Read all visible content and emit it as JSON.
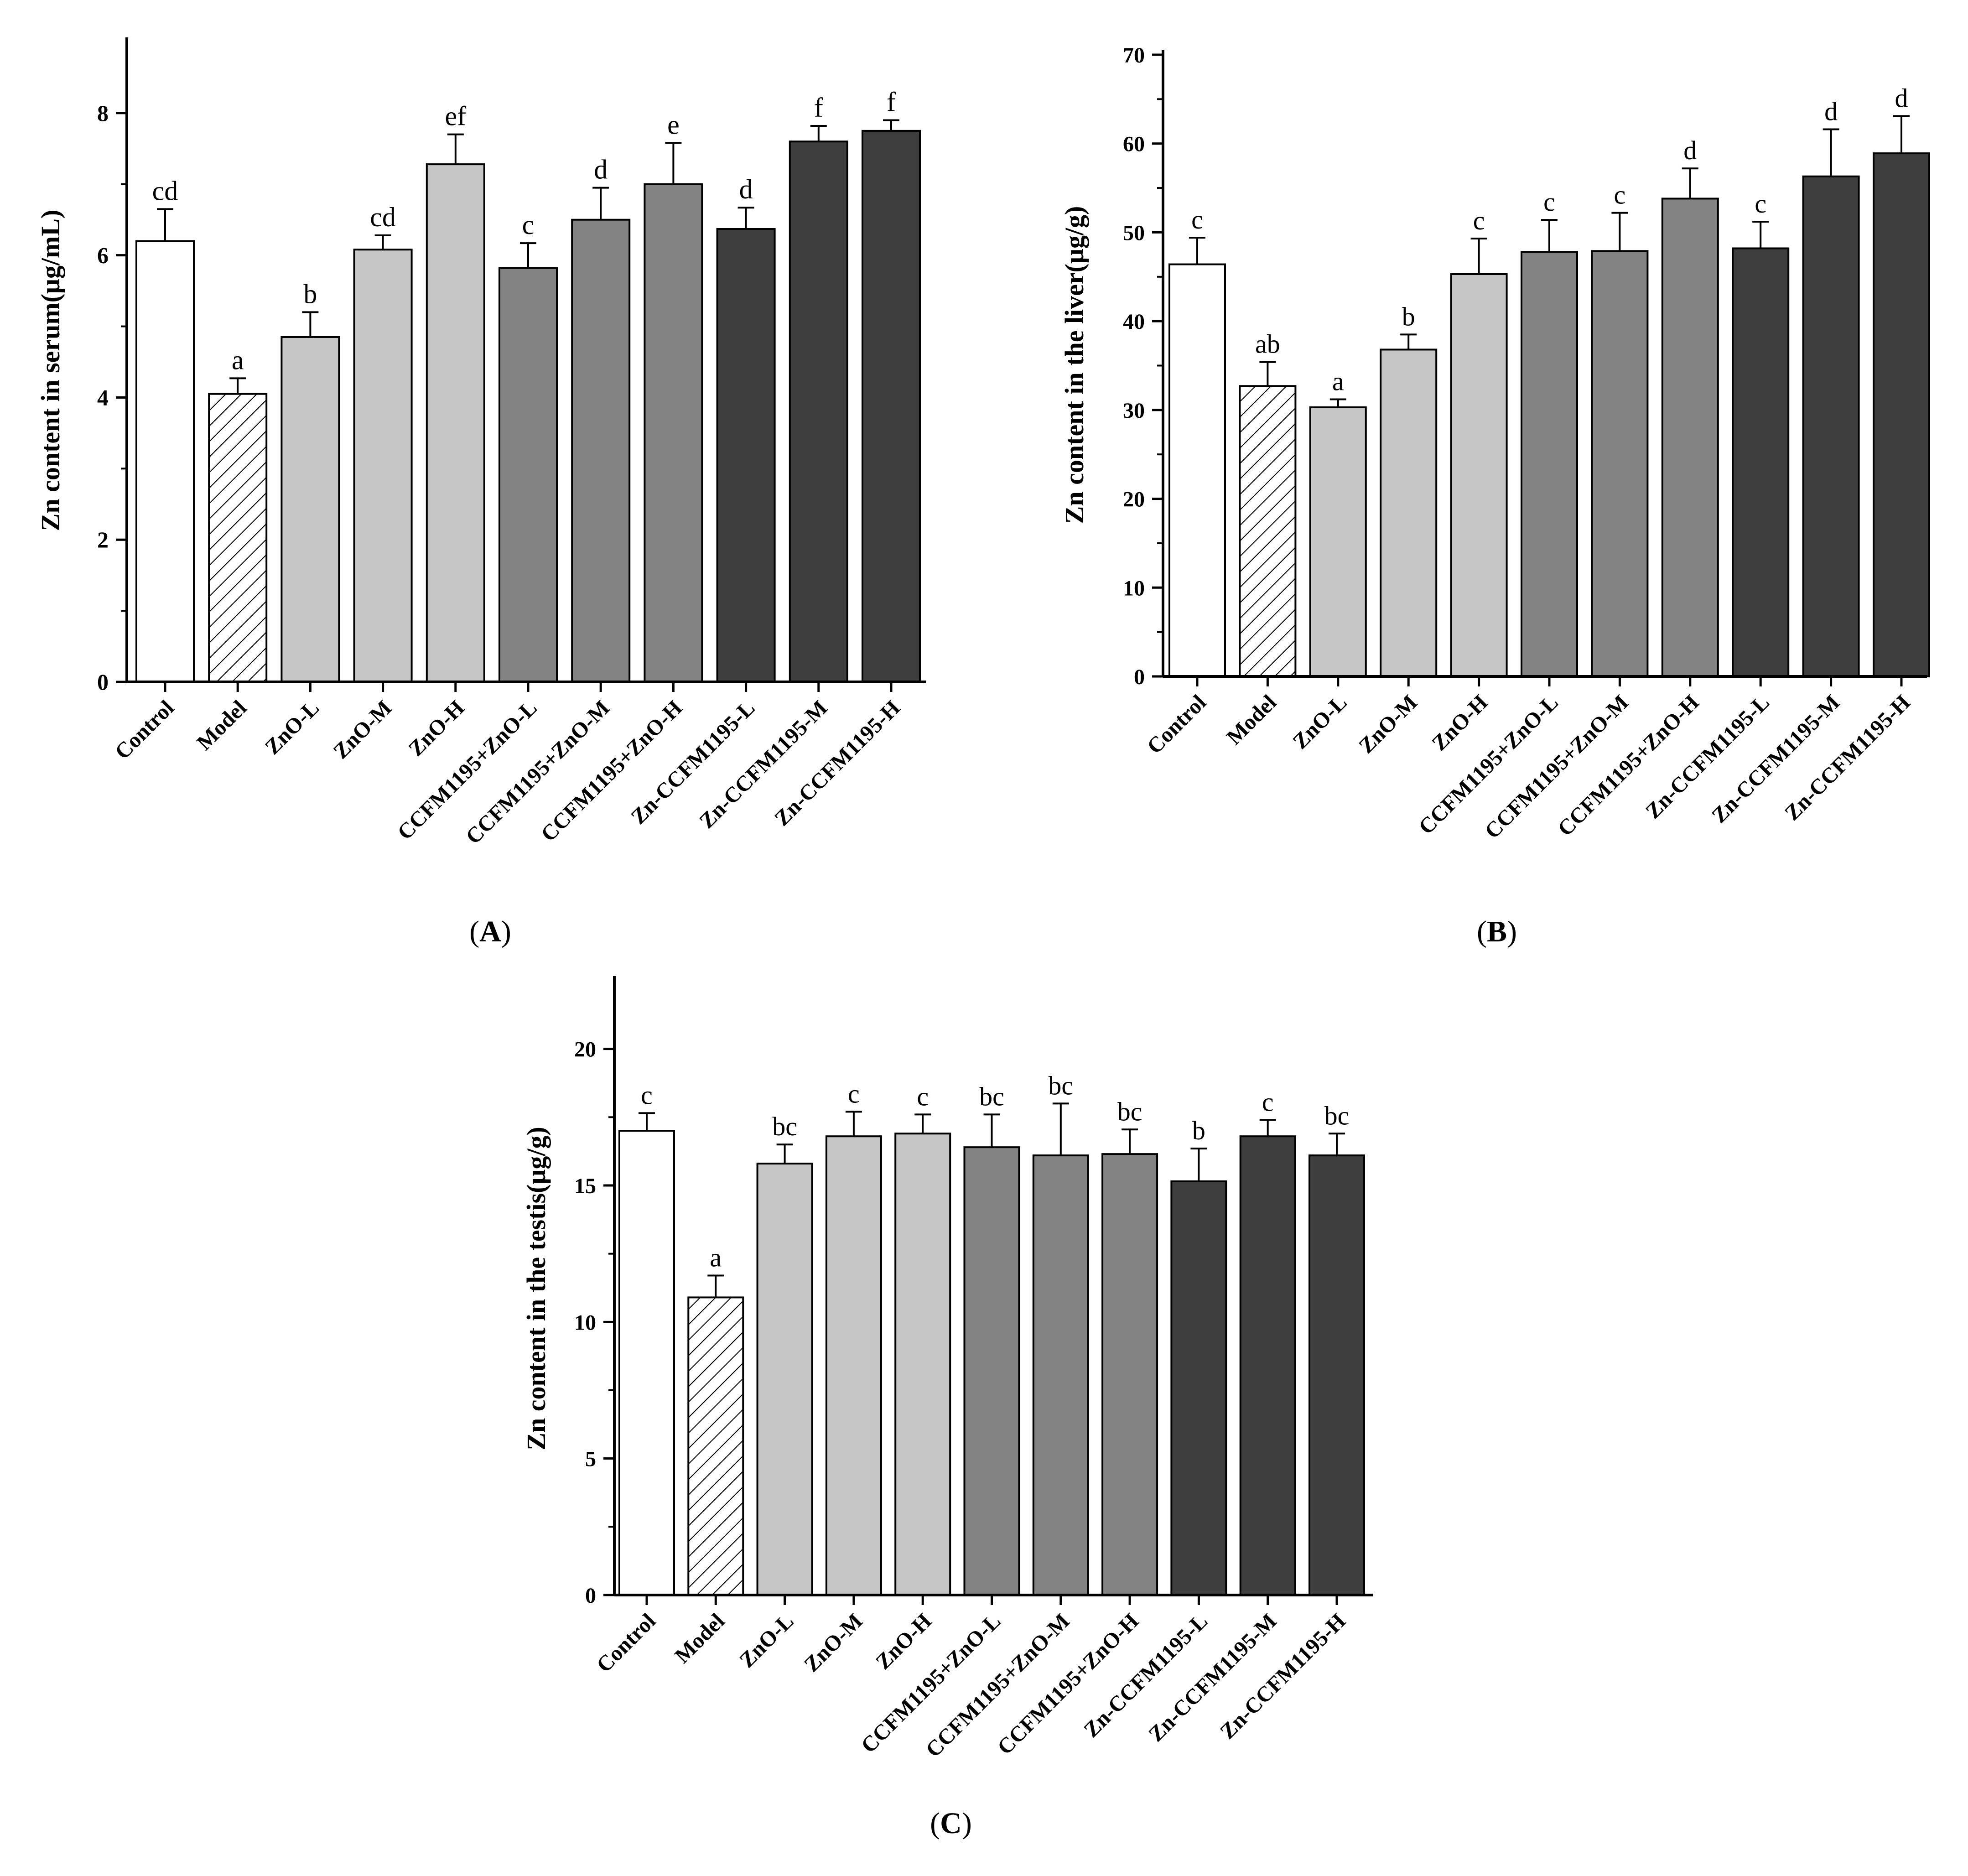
{
  "colors": {
    "white_fill": "#ffffff",
    "hatch_fill": "hatch",
    "light_gray": "#c6c6c6",
    "mid_gray": "#838383",
    "dark_gray": "#3e3e3e",
    "axis": "#000000"
  },
  "panel_captions": [
    "A",
    "B",
    "C"
  ],
  "chart_data": [
    {
      "id": "A",
      "type": "bar",
      "ylabel": "Zn content in serum(μg/mL)",
      "ylim": [
        0,
        9
      ],
      "yticks": [
        0,
        2,
        4,
        6,
        8
      ],
      "categories": [
        "Control",
        "Model",
        "ZnO-L",
        "ZnO-M",
        "ZnO-H",
        "CCFM1195+ZnO-L",
        "CCFM1195+ZnO-M",
        "CCFM1195+ZnO-H",
        "Zn-CCFM1195-L",
        "Zn-CCFM1195-M",
        "Zn-CCFM1195-H"
      ],
      "values": [
        6.2,
        4.05,
        4.85,
        6.08,
        7.28,
        5.82,
        6.5,
        7.0,
        6.37,
        7.6,
        7.75
      ],
      "errors": [
        0.45,
        0.22,
        0.35,
        0.2,
        0.42,
        0.35,
        0.45,
        0.58,
        0.3,
        0.22,
        0.15
      ],
      "significance": [
        "cd",
        "a",
        "b",
        "cd",
        "ef",
        "c",
        "d",
        "e",
        "d",
        "f",
        "f"
      ],
      "fills": [
        "white",
        "hatch",
        "light",
        "light",
        "light",
        "mid",
        "mid",
        "mid",
        "dark",
        "dark",
        "dark"
      ]
    },
    {
      "id": "B",
      "type": "bar",
      "ylabel": "Zn content in the liver(μg/g)",
      "ylim": [
        0,
        70
      ],
      "yticks": [
        0,
        10,
        20,
        30,
        40,
        50,
        60,
        70
      ],
      "categories": [
        "Control",
        "Model",
        "ZnO-L",
        "ZnO-M",
        "ZnO-H",
        "CCFM1195+ZnO-L",
        "CCFM1195+ZnO-M",
        "CCFM1195+ZnO-H",
        "Zn-CCFM1195-L",
        "Zn-CCFM1195-M",
        "Zn-CCFM1195-H"
      ],
      "values": [
        46.4,
        32.7,
        30.3,
        36.8,
        45.3,
        47.8,
        47.9,
        53.8,
        48.2,
        56.3,
        58.9
      ],
      "errors": [
        3.0,
        2.7,
        0.9,
        1.7,
        4.0,
        3.6,
        4.3,
        3.4,
        3.0,
        5.3,
        4.2
      ],
      "significance": [
        "c",
        "ab",
        "a",
        "b",
        "c",
        "c",
        "c",
        "d",
        "c",
        "d",
        "d"
      ],
      "fills": [
        "white",
        "hatch",
        "light",
        "light",
        "light",
        "mid",
        "mid",
        "mid",
        "dark",
        "dark",
        "dark"
      ]
    },
    {
      "id": "C",
      "type": "bar",
      "ylabel": "Zn content in the testis(μg/g)",
      "ylim": [
        0,
        22.5
      ],
      "yticks": [
        0,
        5,
        10,
        15,
        20
      ],
      "categories": [
        "Control",
        "Model",
        "ZnO-L",
        "ZnO-M",
        "ZnO-H",
        "CCFM1195+ZnO-L",
        "CCFM1195+ZnO-M",
        "CCFM1195+ZnO-H",
        "Zn-CCFM1195-L",
        "Zn-CCFM1195-M",
        "Zn-CCFM1195-H"
      ],
      "values": [
        17.0,
        10.9,
        15.8,
        16.8,
        16.9,
        16.4,
        16.1,
        16.15,
        15.15,
        16.8,
        16.1
      ],
      "errors": [
        0.65,
        0.8,
        0.7,
        0.9,
        0.7,
        1.2,
        1.9,
        0.9,
        1.2,
        0.6,
        0.8
      ],
      "significance": [
        "c",
        "a",
        "bc",
        "c",
        "c",
        "bc",
        "bc",
        "bc",
        "b",
        "c",
        "bc"
      ],
      "fills": [
        "white",
        "hatch",
        "light",
        "light",
        "light",
        "mid",
        "mid",
        "mid",
        "dark",
        "dark",
        "dark"
      ]
    }
  ]
}
